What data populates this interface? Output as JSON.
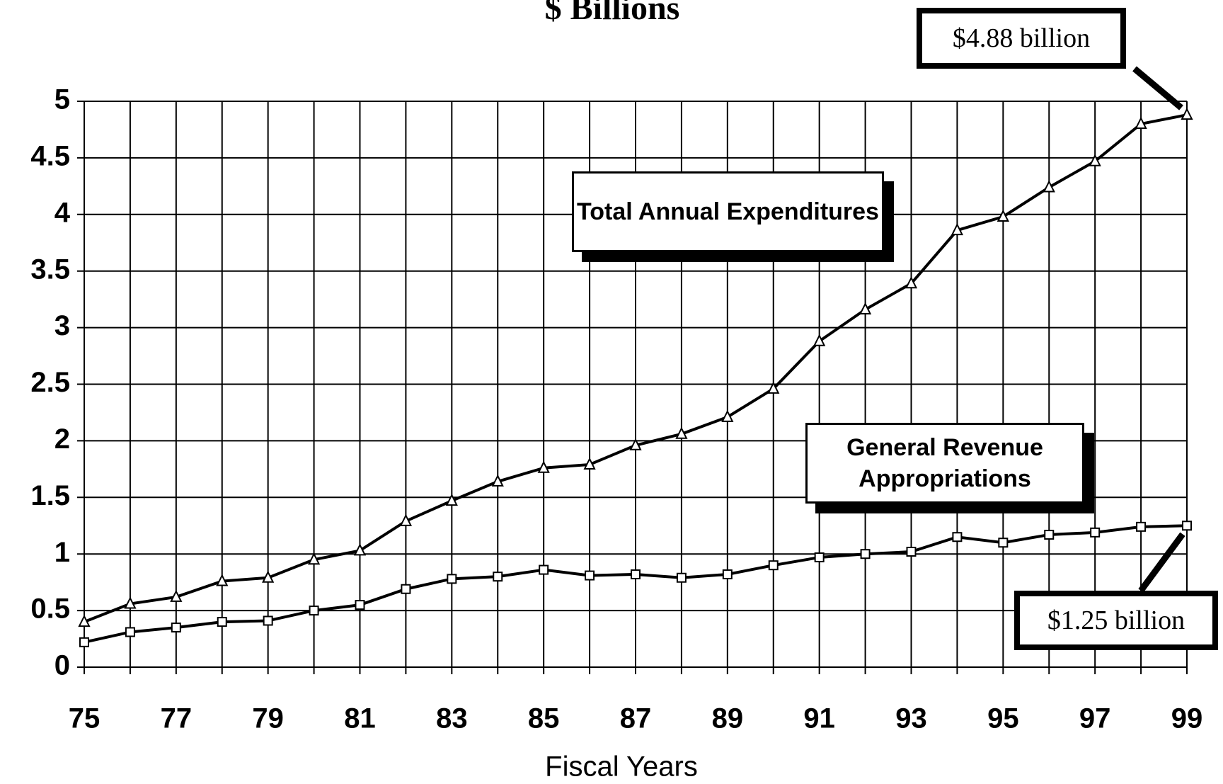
{
  "chart_data": {
    "type": "line",
    "title": "$ Billions",
    "x_label": "Fiscal Years",
    "categories": [
      "75",
      null,
      "77",
      null,
      "79",
      null,
      "81",
      null,
      "83",
      null,
      "85",
      null,
      "87",
      null,
      "89",
      null,
      "91",
      null,
      "93",
      null,
      "95",
      null,
      "97",
      null,
      "99"
    ],
    "series": [
      {
        "name": "Total Annual Expenditures",
        "color": "#000000",
        "marker": "triangle",
        "values": [
          0.4,
          0.56,
          0.62,
          0.76,
          0.79,
          0.95,
          1.03,
          1.29,
          1.47,
          1.64,
          1.76,
          1.79,
          1.96,
          2.06,
          2.21,
          2.46,
          2.88,
          3.16,
          3.39,
          3.86,
          3.98,
          4.24,
          4.47,
          4.8,
          4.88
        ]
      },
      {
        "name": "General Revenue Appropriations",
        "color": "#000000",
        "marker": "square",
        "values": [
          0.22,
          0.31,
          0.35,
          0.4,
          0.41,
          0.5,
          0.55,
          0.69,
          0.78,
          0.8,
          0.86,
          0.81,
          0.82,
          0.79,
          0.82,
          0.9,
          0.97,
          1.0,
          1.02,
          1.15,
          1.1,
          1.17,
          1.19,
          1.24,
          1.25
        ]
      }
    ],
    "annotations": [
      "$4.88 billion",
      "$1.25 billion"
    ],
    "ylim": [
      0,
      5
    ],
    "yticks": [
      0,
      0.5,
      1,
      1.5,
      2,
      2.5,
      3,
      3.5,
      4,
      4.5,
      5
    ],
    "grid": true
  }
}
